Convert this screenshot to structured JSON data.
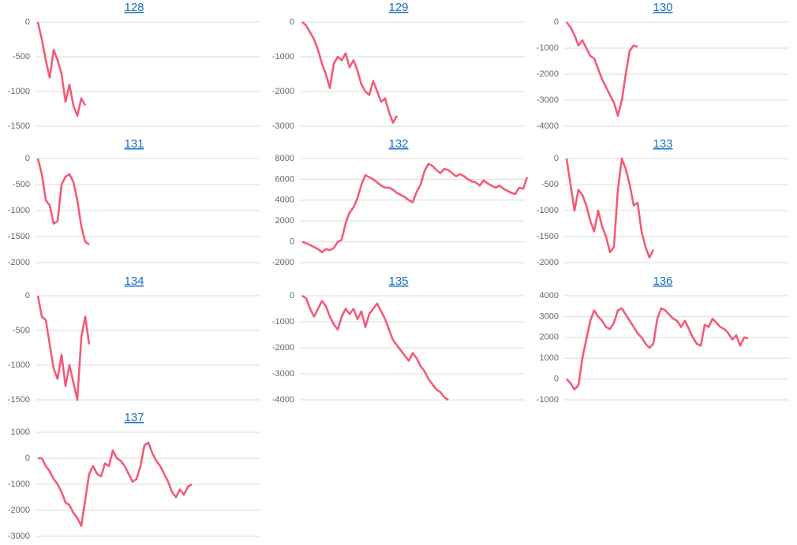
{
  "chart_data": [
    {
      "type": "line",
      "title": "128",
      "color": "#f45b78",
      "grid": true,
      "ylim": [
        -1500,
        0
      ],
      "yticks": [
        0,
        -500,
        -1000,
        -1500
      ],
      "values": [
        0,
        -250,
        -550,
        -800,
        -400,
        -550,
        -750,
        -1150,
        -900,
        -1200,
        -1350,
        -1100,
        -1200
      ]
    },
    {
      "type": "line",
      "title": "129",
      "color": "#f45b78",
      "grid": true,
      "ylim": [
        -3000,
        0
      ],
      "yticks": [
        0,
        -1000,
        -2000,
        -3000
      ],
      "values": [
        0,
        -100,
        -300,
        -500,
        -800,
        -1200,
        -1500,
        -1900,
        -1200,
        -1000,
        -1100,
        -900,
        -1300,
        -1100,
        -1400,
        -1800,
        -2000,
        -2100,
        -1700,
        -2000,
        -2300,
        -2200,
        -2600,
        -2900,
        -2700
      ]
    },
    {
      "type": "line",
      "title": "130",
      "color": "#f45b78",
      "grid": true,
      "ylim": [
        -4000,
        0
      ],
      "yticks": [
        0,
        -1000,
        -2000,
        -3000,
        -4000
      ],
      "values": [
        0,
        -200,
        -500,
        -900,
        -700,
        -1000,
        -1300,
        -1400,
        -1800,
        -2200,
        -2500,
        -2800,
        -3100,
        -3600,
        -3000,
        -2000,
        -1100,
        -900,
        -950
      ]
    },
    {
      "type": "line",
      "title": "131",
      "color": "#f45b78",
      "grid": true,
      "ylim": [
        -2000,
        0
      ],
      "yticks": [
        0,
        -500,
        -1000,
        -1500,
        -2000
      ],
      "values": [
        0,
        -300,
        -800,
        -900,
        -1250,
        -1200,
        -500,
        -350,
        -300,
        -450,
        -800,
        -1300,
        -1600,
        -1650
      ]
    },
    {
      "type": "line",
      "title": "132",
      "color": "#f45b78",
      "grid": true,
      "ylim": [
        -2000,
        8000
      ],
      "yticks": [
        8000,
        6000,
        4000,
        2000,
        0,
        -2000
      ],
      "values": [
        0,
        -150,
        -300,
        -500,
        -700,
        -1000,
        -700,
        -800,
        -600,
        0,
        200,
        1800,
        2800,
        3300,
        4200,
        5500,
        6400,
        6200,
        6000,
        5700,
        5400,
        5200,
        5200,
        5000,
        4700,
        4500,
        4300,
        4000,
        3800,
        4800,
        5500,
        6800,
        7500,
        7300,
        6900,
        6600,
        7000,
        6900,
        6600,
        6300,
        6500,
        6300,
        6000,
        5800,
        5700,
        5400,
        5900,
        5600,
        5400,
        5200,
        5400,
        5100,
        4900,
        4700,
        4600,
        5200,
        5100,
        6200
      ]
    },
    {
      "type": "line",
      "title": "133",
      "color": "#f45b78",
      "grid": true,
      "ylim": [
        -2000,
        0
      ],
      "yticks": [
        0,
        -500,
        -1000,
        -1500,
        -2000
      ],
      "values": [
        0,
        -500,
        -1000,
        -600,
        -700,
        -900,
        -1200,
        -1400,
        -1000,
        -1300,
        -1500,
        -1800,
        -1700,
        -600,
        0,
        -200,
        -500,
        -900,
        -850,
        -1400,
        -1700,
        -1900,
        -1750
      ]
    },
    {
      "type": "line",
      "title": "134",
      "color": "#f45b78",
      "grid": true,
      "ylim": [
        -1500,
        0
      ],
      "yticks": [
        0,
        -500,
        -1000,
        -1500
      ],
      "values": [
        0,
        -300,
        -350,
        -700,
        -1050,
        -1200,
        -850,
        -1300,
        -1000,
        -1250,
        -1500,
        -600,
        -300,
        -700
      ]
    },
    {
      "type": "line",
      "title": "135",
      "color": "#f45b78",
      "grid": true,
      "ylim": [
        -4000,
        0
      ],
      "yticks": [
        0,
        -1000,
        -2000,
        -3000,
        -4000
      ],
      "values": [
        0,
        -100,
        -500,
        -800,
        -500,
        -200,
        -400,
        -800,
        -1100,
        -1300,
        -800,
        -500,
        -700,
        -500,
        -900,
        -600,
        -1200,
        -700,
        -500,
        -300,
        -600,
        -900,
        -1300,
        -1700,
        -1900,
        -2100,
        -2300,
        -2500,
        -2200,
        -2400,
        -2700,
        -2900,
        -3200,
        -3400,
        -3600,
        -3700,
        -3900,
        -4000
      ]
    },
    {
      "type": "line",
      "title": "136",
      "color": "#f45b78",
      "grid": true,
      "ylim": [
        -1000,
        4000
      ],
      "yticks": [
        4000,
        3000,
        2000,
        1000,
        0,
        -1000
      ],
      "values": [
        0,
        -200,
        -500,
        -300,
        1000,
        1900,
        2800,
        3300,
        3000,
        2800,
        2500,
        2400,
        2700,
        3300,
        3400,
        3100,
        2800,
        2500,
        2200,
        2000,
        1700,
        1500,
        1700,
        2900,
        3400,
        3300,
        3100,
        2900,
        2800,
        2500,
        2800,
        2400,
        2000,
        1700,
        1600,
        2600,
        2500,
        2900,
        2700,
        2500,
        2400,
        2200,
        1900,
        2100,
        1600,
        2000,
        1950
      ]
    },
    {
      "type": "line",
      "title": "137",
      "color": "#f45b78",
      "grid": true,
      "ylim": [
        -3000,
        1000
      ],
      "yticks": [
        1000,
        0,
        -1000,
        -2000,
        -3000
      ],
      "values": [
        0,
        0,
        -300,
        -500,
        -800,
        -1000,
        -1300,
        -1700,
        -1800,
        -2100,
        -2300,
        -2600,
        -1600,
        -600,
        -300,
        -600,
        -700,
        -200,
        -300,
        300,
        0,
        -100,
        -300,
        -600,
        -900,
        -800,
        -300,
        500,
        600,
        200,
        -100,
        -300,
        -600,
        -900,
        -1300,
        -1500,
        -1200,
        -1400,
        -1100,
        -1000
      ]
    }
  ]
}
